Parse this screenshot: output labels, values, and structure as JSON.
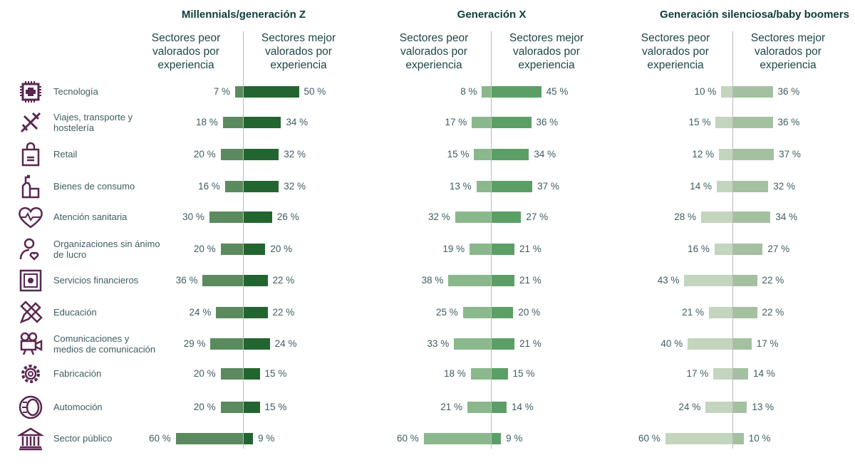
{
  "chart_data": {
    "type": "bar",
    "categories": [
      "Tecnología",
      "Viajes, transporte y hostelería",
      "Retail",
      "Bienes de consumo",
      "Atención sanitaria",
      "Organizaciones sin ánimo de lucro",
      "Servicios financieros",
      "Educación",
      "Comunicaciones y medios de comunicación",
      "Fabricación",
      "Automoción",
      "Sector público"
    ],
    "category_icons": [
      "chip-icon",
      "airplane-icon",
      "shopping-bag-icon",
      "spray-bottle-icon",
      "heart-pulse-icon",
      "person-heart-icon",
      "safe-icon",
      "pencil-ruler-icon",
      "video-camera-icon",
      "gear-icon",
      "tire-icon",
      "bank-icon"
    ],
    "value_suffix": " %",
    "panels": [
      {
        "title": "Millennials/generación Z",
        "left_label": "Sectores peor valorados por experiencia",
        "right_label": "Sectores mejor valorados por experiencia",
        "colors": {
          "left": "#5b8a5f",
          "right": "#236530"
        },
        "series": [
          {
            "name": "Sectores peor valorados por experiencia",
            "values": [
              7,
              18,
              20,
              16,
              30,
              20,
              36,
              24,
              29,
              20,
              20,
              60
            ]
          },
          {
            "name": "Sectores mejor valorados por experiencia",
            "values": [
              50,
              34,
              32,
              32,
              26,
              20,
              22,
              22,
              24,
              15,
              15,
              9
            ]
          }
        ]
      },
      {
        "title": "Generación X",
        "left_label": "Sectores peor valorados por experiencia",
        "right_label": "Sectores mejor valorados por experiencia",
        "colors": {
          "left": "#8ab88c",
          "right": "#5c9f66"
        },
        "series": [
          {
            "name": "Sectores peor valorados por experiencia",
            "values": [
              8,
              17,
              15,
              13,
              32,
              19,
              38,
              25,
              33,
              18,
              21,
              60
            ]
          },
          {
            "name": "Sectores mejor valorados por experiencia",
            "values": [
              45,
              36,
              34,
              37,
              27,
              21,
              21,
              20,
              21,
              15,
              14,
              9
            ]
          }
        ]
      },
      {
        "title": "Generación silenciosa/baby boomers",
        "left_label": "Sectores peor valorados por experiencia",
        "right_label": "Sectores mejor valorados por experiencia",
        "colors": {
          "left": "#c3d5bd",
          "right": "#a4c0a0"
        },
        "series": [
          {
            "name": "Sectores peor valorados por experiencia",
            "values": [
              10,
              15,
              12,
              14,
              28,
              16,
              43,
              21,
              40,
              17,
              24,
              60
            ]
          },
          {
            "name": "Sectores mejor valorados por experiencia",
            "values": [
              36,
              36,
              37,
              32,
              34,
              27,
              22,
              22,
              17,
              14,
              13,
              10
            ]
          }
        ]
      }
    ],
    "icon_color": "#5a2651"
  }
}
